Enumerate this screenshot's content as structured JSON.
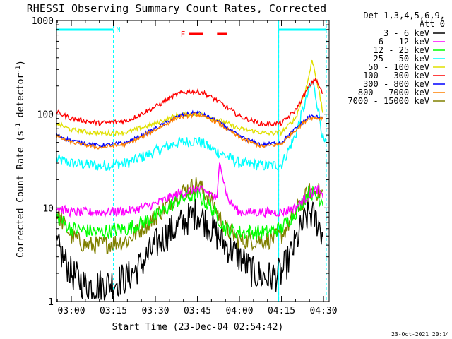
{
  "chart_data": {
    "type": "line",
    "title": "RHESSI Observing Summary Count Rates, Corrected",
    "xlabel": "Start Time (23-Dec-04 02:54:42)",
    "ylabel_main": "Corrected Count Rate (s",
    "ylabel_sup1": "-1",
    "ylabel_mid": " detector",
    "ylabel_sup2": "-1",
    "ylabel_end": ")",
    "yscale": "log",
    "ylim": [
      1,
      1000
    ],
    "xlim": [
      "02:54:42",
      "04:32:00"
    ],
    "x_ticks": [
      "03:00",
      "03:15",
      "03:30",
      "03:45",
      "04:00",
      "04:15",
      "04:30"
    ],
    "y_ticks": [
      "1",
      "10",
      "100",
      "1000"
    ],
    "legend_header": [
      "Det 1,3,4,5,6,9,",
      "Att 0"
    ],
    "legend_placement": "right",
    "legend": [
      {
        "label": "3 - 6 keV",
        "color": "#000000"
      },
      {
        "label": "6 - 12 keV",
        "color": "#ff00ff"
      },
      {
        "label": "12 - 25 keV",
        "color": "#00ff00"
      },
      {
        "label": "25 - 50 keV",
        "color": "#00ffff"
      },
      {
        "label": "50 - 100 keV",
        "color": "#e0e000"
      },
      {
        "label": "100 - 300 keV",
        "color": "#ff0000"
      },
      {
        "label": "300 - 800 keV",
        "color": "#0000ff"
      },
      {
        "label": "800 - 7000 keV",
        "color": "#ff8000"
      },
      {
        "label": "7000 - 15000 keV",
        "color": "#808000"
      }
    ],
    "annotations": {
      "night_label": "N",
      "night_intervals": [
        [
          "02:54:42",
          "03:15:00"
        ],
        [
          "04:14:00",
          "04:31:00"
        ]
      ],
      "flare_label": "F",
      "flare_intervals": [
        [
          "03:42:00",
          "03:47:00"
        ],
        [
          "03:52:00",
          "03:55:30"
        ]
      ]
    },
    "series": [
      {
        "label": "3 - 6 keV",
        "color": "#000000",
        "noise": 0.18,
        "points": [
          [
            "02:54:42",
            4
          ],
          [
            "03:00",
            2
          ],
          [
            "03:05",
            1.5
          ],
          [
            "03:10",
            1.5
          ],
          [
            "03:15",
            1.6
          ],
          [
            "03:20",
            1.8
          ],
          [
            "03:25",
            2.5
          ],
          [
            "03:30",
            4
          ],
          [
            "03:35",
            5.5
          ],
          [
            "03:40",
            7
          ],
          [
            "03:45",
            9
          ],
          [
            "03:50",
            6
          ],
          [
            "03:55",
            4
          ],
          [
            "04:00",
            3
          ],
          [
            "04:05",
            2
          ],
          [
            "04:10",
            1.8
          ],
          [
            "04:15",
            2
          ],
          [
            "04:18",
            3
          ],
          [
            "04:22",
            6
          ],
          [
            "04:25",
            9
          ],
          [
            "04:28",
            7
          ],
          [
            "04:30",
            5
          ]
        ]
      },
      {
        "label": "6 - 12 keV",
        "color": "#ff00ff",
        "noise": 0.05,
        "points": [
          [
            "02:54:42",
            10
          ],
          [
            "03:00",
            9
          ],
          [
            "03:10",
            9
          ],
          [
            "03:20",
            9.2
          ],
          [
            "03:30",
            11
          ],
          [
            "03:38",
            14
          ],
          [
            "03:45",
            16
          ],
          [
            "03:50",
            14
          ],
          [
            "03:52",
            12
          ],
          [
            "03:53",
            35
          ],
          [
            "03:54",
            22
          ],
          [
            "03:56",
            12
          ],
          [
            "04:00",
            9
          ],
          [
            "04:10",
            9
          ],
          [
            "04:15",
            9
          ],
          [
            "04:20",
            10
          ],
          [
            "04:25",
            14
          ],
          [
            "04:28",
            16
          ],
          [
            "04:30",
            12
          ]
        ]
      },
      {
        "label": "12 - 25 keV",
        "color": "#00ff00",
        "noise": 0.08,
        "points": [
          [
            "02:54:42",
            8
          ],
          [
            "03:00",
            6
          ],
          [
            "03:10",
            5.5
          ],
          [
            "03:20",
            6
          ],
          [
            "03:30",
            8
          ],
          [
            "03:38",
            12
          ],
          [
            "03:45",
            14
          ],
          [
            "03:50",
            10
          ],
          [
            "03:55",
            6
          ],
          [
            "04:00",
            5.5
          ],
          [
            "04:10",
            5.5
          ],
          [
            "04:15",
            6
          ],
          [
            "04:20",
            9
          ],
          [
            "04:25",
            15
          ],
          [
            "04:28",
            13
          ],
          [
            "04:30",
            12
          ]
        ]
      },
      {
        "label": "25 - 50 keV",
        "color": "#00ffff",
        "noise": 0.06,
        "points": [
          [
            "02:54:42",
            33
          ],
          [
            "03:00",
            30
          ],
          [
            "03:10",
            28
          ],
          [
            "03:20",
            30
          ],
          [
            "03:30",
            40
          ],
          [
            "03:38",
            50
          ],
          [
            "03:45",
            52
          ],
          [
            "03:52",
            40
          ],
          [
            "04:00",
            30
          ],
          [
            "04:10",
            28
          ],
          [
            "04:15",
            29
          ],
          [
            "04:20",
            60
          ],
          [
            "04:24",
            150
          ],
          [
            "04:26",
            230
          ],
          [
            "04:28",
            120
          ],
          [
            "04:30",
            50
          ],
          [
            "04:31",
            48
          ]
        ]
      },
      {
        "label": "50 - 100 keV",
        "color": "#e0e000",
        "noise": 0.025,
        "points": [
          [
            "02:54:42",
            80
          ],
          [
            "03:00",
            68
          ],
          [
            "03:10",
            62
          ],
          [
            "03:20",
            64
          ],
          [
            "03:30",
            80
          ],
          [
            "03:38",
            98
          ],
          [
            "03:45",
            102
          ],
          [
            "03:52",
            88
          ],
          [
            "04:00",
            70
          ],
          [
            "04:10",
            62
          ],
          [
            "04:15",
            64
          ],
          [
            "04:20",
            90
          ],
          [
            "04:24",
            200
          ],
          [
            "04:26",
            380
          ],
          [
            "04:28",
            200
          ],
          [
            "04:30",
            95
          ]
        ]
      },
      {
        "label": "100 - 300 keV",
        "color": "#ff0000",
        "noise": 0.025,
        "points": [
          [
            "02:54:42",
            105
          ],
          [
            "03:00",
            90
          ],
          [
            "03:10",
            80
          ],
          [
            "03:20",
            85
          ],
          [
            "03:30",
            120
          ],
          [
            "03:38",
            165
          ],
          [
            "03:42",
            175
          ],
          [
            "03:47",
            170
          ],
          [
            "03:52",
            140
          ],
          [
            "04:00",
            95
          ],
          [
            "04:08",
            78
          ],
          [
            "04:15",
            80
          ],
          [
            "04:20",
            110
          ],
          [
            "04:25",
            200
          ],
          [
            "04:27",
            240
          ],
          [
            "04:30",
            160
          ]
        ]
      },
      {
        "label": "300 - 800 keV",
        "color": "#0000ff",
        "noise": 0.02,
        "points": [
          [
            "02:54:42",
            60
          ],
          [
            "03:00",
            52
          ],
          [
            "03:10",
            46
          ],
          [
            "03:20",
            50
          ],
          [
            "03:30",
            70
          ],
          [
            "03:38",
            95
          ],
          [
            "03:45",
            105
          ],
          [
            "03:52",
            85
          ],
          [
            "04:00",
            58
          ],
          [
            "04:08",
            47
          ],
          [
            "04:15",
            50
          ],
          [
            "04:20",
            70
          ],
          [
            "04:25",
            95
          ],
          [
            "04:30",
            92
          ]
        ]
      },
      {
        "label": "800 - 7000 keV",
        "color": "#ff8000",
        "noise": 0.02,
        "points": [
          [
            "02:54:42",
            58
          ],
          [
            "03:00",
            50
          ],
          [
            "03:10",
            44
          ],
          [
            "03:20",
            48
          ],
          [
            "03:30",
            68
          ],
          [
            "03:38",
            92
          ],
          [
            "03:45",
            100
          ],
          [
            "03:52",
            82
          ],
          [
            "04:00",
            56
          ],
          [
            "04:08",
            45
          ],
          [
            "04:15",
            48
          ],
          [
            "04:20",
            68
          ],
          [
            "04:25",
            92
          ],
          [
            "04:30",
            90
          ]
        ]
      },
      {
        "label": "7000 - 15000 keV",
        "color": "#808000",
        "noise": 0.1,
        "points": [
          [
            "02:54:42",
            9
          ],
          [
            "03:00",
            5
          ],
          [
            "03:05",
            4
          ],
          [
            "03:10",
            4
          ],
          [
            "03:20",
            4.5
          ],
          [
            "03:30",
            8
          ],
          [
            "03:38",
            14
          ],
          [
            "03:45",
            18
          ],
          [
            "03:50",
            12
          ],
          [
            "03:55",
            6
          ],
          [
            "04:00",
            4.5
          ],
          [
            "04:10",
            4.5
          ],
          [
            "04:15",
            5
          ],
          [
            "04:20",
            9
          ],
          [
            "04:25",
            15
          ],
          [
            "04:28",
            15
          ],
          [
            "04:30",
            14
          ]
        ]
      }
    ]
  },
  "footer": {
    "timestamp": "23-Oct-2021 20:14"
  }
}
